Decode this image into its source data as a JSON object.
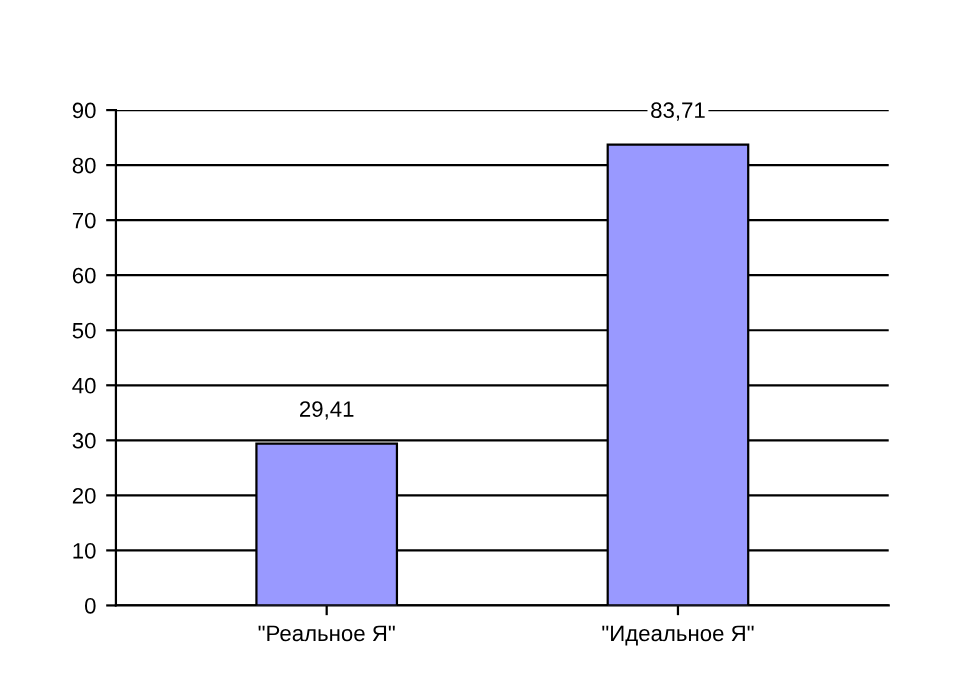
{
  "chart_data": {
    "type": "bar",
    "categories": [
      "\"Реальное Я\"",
      "\"Идеальное Я\""
    ],
    "values": [
      29.41,
      83.71
    ],
    "value_labels": [
      "29,41",
      "83,71"
    ],
    "color": "#9999ff",
    "ylim": [
      0,
      90
    ],
    "yticks": [
      0,
      10,
      20,
      30,
      40,
      50,
      60,
      70,
      80,
      90
    ],
    "grid": "y",
    "legend": false
  }
}
